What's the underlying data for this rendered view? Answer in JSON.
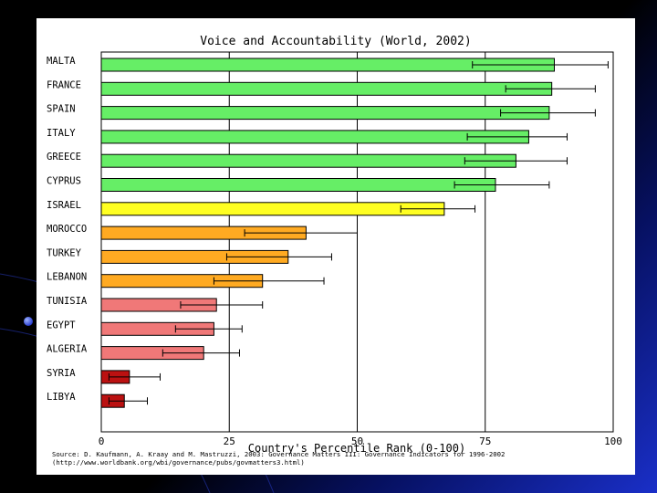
{
  "chart_data": {
    "type": "bar",
    "orientation": "horizontal",
    "title": "Voice and Accountability (World, 2002)",
    "xlabel": "Country's Percentile Rank (0-100)",
    "ylabel": "",
    "xlim": [
      0,
      100
    ],
    "xticks": [
      "0",
      "25",
      "50",
      "75",
      "100"
    ],
    "grid": true,
    "categories": [
      "MALTA",
      "FRANCE",
      "SPAIN",
      "ITALY",
      "GREECE",
      "CYPRUS",
      "ISRAEL",
      "MOROCCO",
      "TURKEY",
      "LEBANON",
      "TUNISIA",
      "EGYPT",
      "ALGERIA",
      "SYRIA",
      "LIBYA"
    ],
    "values": [
      88.5,
      88,
      87.5,
      83.5,
      81,
      77,
      67,
      40,
      36.5,
      31.5,
      22.5,
      22,
      20,
      5.5,
      4.5
    ],
    "error_low": [
      72.5,
      79,
      78,
      71.5,
      71,
      69,
      58.5,
      28,
      24.5,
      22,
      15.5,
      14.5,
      12,
      1.5,
      1.5
    ],
    "error_high": [
      99,
      96.5,
      96.5,
      91,
      91,
      87.5,
      73,
      50,
      45,
      43.5,
      31.5,
      27.5,
      27,
      11.5,
      9
    ],
    "colors": [
      "#66ee66",
      "#66ee66",
      "#66ee66",
      "#66ee66",
      "#66ee66",
      "#66ee66",
      "#ffff22",
      "#ffaa22",
      "#ffaa22",
      "#ffaa22",
      "#f07878",
      "#f07878",
      "#f07878",
      "#bb1111",
      "#bb1111"
    ],
    "source_line1": "Source: D. Kaufmann, A. Kraay and M. Mastruzzi, 2003: Governance Matters III: Governance Indicators for 1996-2002",
    "source_line2": "(http://www.worldbank.org/wbi/governance/pubs/govmatters3.html)"
  }
}
